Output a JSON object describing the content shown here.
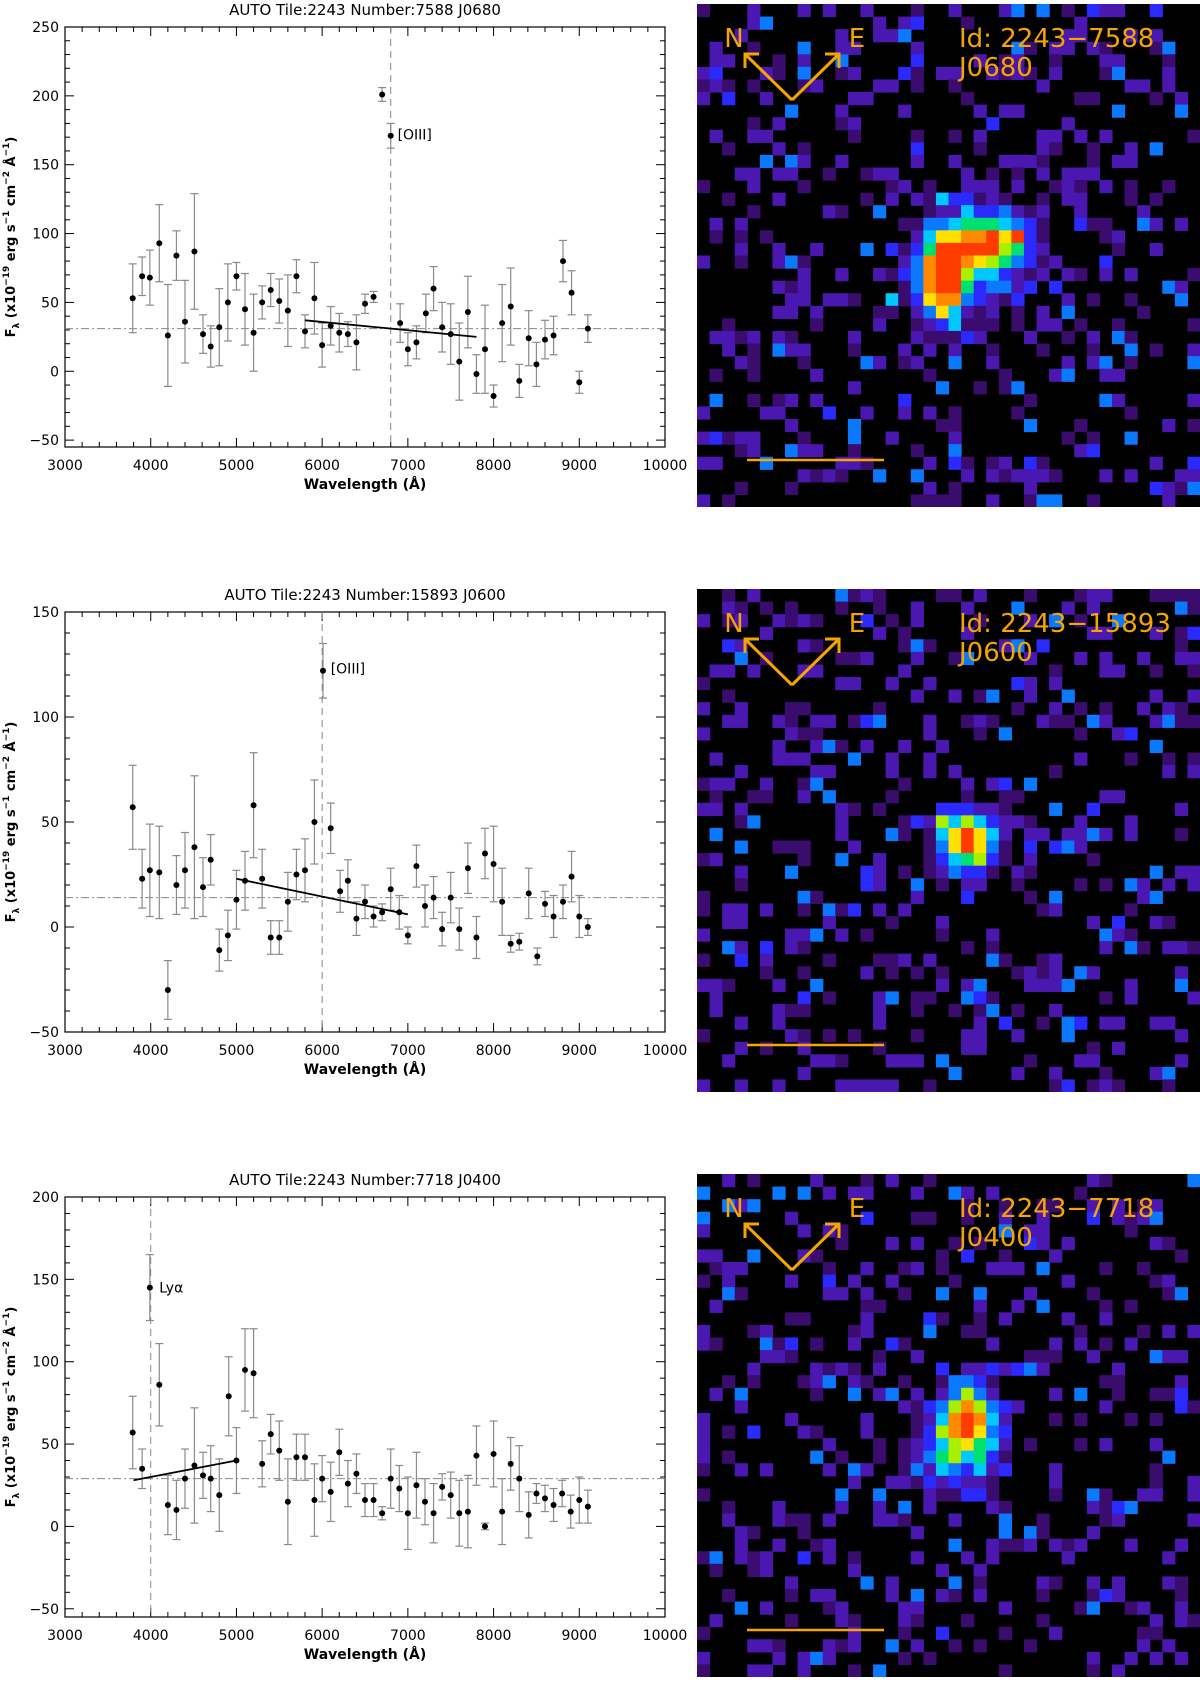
{
  "chart_data": [
    {
      "type": "scatter",
      "title": "AUTO Tile:2243 Number:7588 J0680",
      "xlabel": "Wavelength (Å)",
      "ylabel_main": "F",
      "ylabel_sub": "λ",
      "ylabel_rest": " (x10",
      "ylabel_exp1": "−19",
      "ylabel_mid1": " erg s",
      "ylabel_exp2": "−1",
      "ylabel_mid2": " cm",
      "ylabel_exp3": "−2",
      "ylabel_mid3": " Å",
      "ylabel_exp4": "−1",
      "ylabel_end": ")",
      "xlim": [
        3000,
        10000
      ],
      "ylim": [
        -55,
        250
      ],
      "xticks": [
        "3000",
        "4000",
        "5000",
        "6000",
        "7000",
        "8000",
        "9000",
        "10000"
      ],
      "xtick_values": [
        3000,
        4000,
        5000,
        6000,
        7000,
        8000,
        9000,
        10000
      ],
      "yticks": [
        "−50",
        "0",
        "50",
        "100",
        "150",
        "200",
        "250"
      ],
      "ytick_values": [
        -50,
        0,
        50,
        100,
        150,
        200,
        250
      ],
      "reference_level": 31,
      "line_marker_x": 6800,
      "line_label": "[OIII]",
      "line_label_at": [
        6880,
        172
      ],
      "continuum_fit": [
        [
          5800,
          37
        ],
        [
          7800,
          25
        ]
      ],
      "points": [
        {
          "x": 3790,
          "y": 53,
          "err": 25
        },
        {
          "x": 3900,
          "y": 69,
          "err": 14
        },
        {
          "x": 3990,
          "y": 68,
          "err": 20
        },
        {
          "x": 4100,
          "y": 93,
          "err": 28
        },
        {
          "x": 4200,
          "y": 26,
          "err": 37
        },
        {
          "x": 4300,
          "y": 84,
          "err": 18
        },
        {
          "x": 4400,
          "y": 36,
          "err": 30
        },
        {
          "x": 4510,
          "y": 87,
          "err": 42
        },
        {
          "x": 4610,
          "y": 27,
          "err": 14
        },
        {
          "x": 4700,
          "y": 18,
          "err": 15
        },
        {
          "x": 4800,
          "y": 32,
          "err": 28
        },
        {
          "x": 4900,
          "y": 50,
          "err": 28
        },
        {
          "x": 5000,
          "y": 69,
          "err": 10
        },
        {
          "x": 5100,
          "y": 45,
          "err": 26
        },
        {
          "x": 5200,
          "y": 28,
          "err": 28
        },
        {
          "x": 5300,
          "y": 50,
          "err": 12
        },
        {
          "x": 5400,
          "y": 59,
          "err": 12
        },
        {
          "x": 5500,
          "y": 51,
          "err": 16
        },
        {
          "x": 5600,
          "y": 44,
          "err": 26
        },
        {
          "x": 5700,
          "y": 69,
          "err": 12
        },
        {
          "x": 5800,
          "y": 29,
          "err": 12
        },
        {
          "x": 5910,
          "y": 53,
          "err": 26
        },
        {
          "x": 6000,
          "y": 19,
          "err": 16
        },
        {
          "x": 6100,
          "y": 33,
          "err": 14
        },
        {
          "x": 6200,
          "y": 28,
          "err": 14
        },
        {
          "x": 6300,
          "y": 27,
          "err": 9
        },
        {
          "x": 6400,
          "y": 21,
          "err": 20
        },
        {
          "x": 6500,
          "y": 49,
          "err": 7
        },
        {
          "x": 6600,
          "y": 54,
          "err": 4
        },
        {
          "x": 6700,
          "y": 201,
          "err": 5
        },
        {
          "x": 6800,
          "y": 171,
          "err": 9
        },
        {
          "x": 6910,
          "y": 35,
          "err": 14
        },
        {
          "x": 7000,
          "y": 16,
          "err": 12
        },
        {
          "x": 7100,
          "y": 21,
          "err": 12
        },
        {
          "x": 7210,
          "y": 42,
          "err": 14
        },
        {
          "x": 7300,
          "y": 60,
          "err": 16
        },
        {
          "x": 7400,
          "y": 32,
          "err": 18
        },
        {
          "x": 7500,
          "y": 27,
          "err": 22
        },
        {
          "x": 7600,
          "y": 7,
          "err": 28
        },
        {
          "x": 7700,
          "y": 43,
          "err": 26
        },
        {
          "x": 7800,
          "y": -2,
          "err": 14
        },
        {
          "x": 7900,
          "y": 16,
          "err": 32
        },
        {
          "x": 8000,
          "y": -18,
          "err": 8
        },
        {
          "x": 8100,
          "y": 35,
          "err": 28
        },
        {
          "x": 8200,
          "y": 47,
          "err": 28
        },
        {
          "x": 8300,
          "y": -7,
          "err": 12
        },
        {
          "x": 8410,
          "y": 24,
          "err": 20
        },
        {
          "x": 8500,
          "y": 5,
          "err": 16
        },
        {
          "x": 8600,
          "y": 23,
          "err": 14
        },
        {
          "x": 8700,
          "y": 26,
          "err": 14
        },
        {
          "x": 8810,
          "y": 80,
          "err": 15
        },
        {
          "x": 8910,
          "y": 57,
          "err": 16
        },
        {
          "x": 9000,
          "y": -8,
          "err": 8
        },
        {
          "x": 9100,
          "y": 31,
          "err": 10
        }
      ]
    },
    {
      "type": "scatter",
      "title": "AUTO Tile:2243 Number:15893 J0600",
      "xlabel": "Wavelength (Å)",
      "ylabel_main": "F",
      "ylabel_sub": "λ",
      "ylabel_rest": " (x10",
      "ylabel_exp1": "−19",
      "ylabel_mid1": " erg s",
      "ylabel_exp2": "−1",
      "ylabel_mid2": " cm",
      "ylabel_exp3": "−2",
      "ylabel_mid3": " Å",
      "ylabel_exp4": "−1",
      "ylabel_end": ")",
      "xlim": [
        3000,
        10000
      ],
      "ylim": [
        -50,
        150
      ],
      "xticks": [
        "3000",
        "4000",
        "5000",
        "6000",
        "7000",
        "8000",
        "9000",
        "10000"
      ],
      "xtick_values": [
        3000,
        4000,
        5000,
        6000,
        7000,
        8000,
        9000,
        10000
      ],
      "yticks": [
        "−50",
        "0",
        "50",
        "100",
        "150"
      ],
      "ytick_values": [
        -50,
        0,
        50,
        100,
        150
      ],
      "reference_level": 14,
      "line_marker_x": 6000,
      "line_label": "[OIII]",
      "line_label_at": [
        6100,
        123
      ],
      "continuum_fit": [
        [
          5000,
          23
        ],
        [
          7000,
          6
        ]
      ],
      "points": [
        {
          "x": 3790,
          "y": 57,
          "err": 20
        },
        {
          "x": 3900,
          "y": 23,
          "err": 14
        },
        {
          "x": 3990,
          "y": 27,
          "err": 22
        },
        {
          "x": 4100,
          "y": 26,
          "err": 22
        },
        {
          "x": 4200,
          "y": -30,
          "err": 14
        },
        {
          "x": 4300,
          "y": 20,
          "err": 14
        },
        {
          "x": 4400,
          "y": 27,
          "err": 18
        },
        {
          "x": 4510,
          "y": 38,
          "err": 34
        },
        {
          "x": 4610,
          "y": 19,
          "err": 14
        },
        {
          "x": 4700,
          "y": 32,
          "err": 12
        },
        {
          "x": 4800,
          "y": -11,
          "err": 10
        },
        {
          "x": 4900,
          "y": -4,
          "err": 12
        },
        {
          "x": 5000,
          "y": 13,
          "err": 14
        },
        {
          "x": 5100,
          "y": 22,
          "err": 14
        },
        {
          "x": 5200,
          "y": 58,
          "err": 25
        },
        {
          "x": 5300,
          "y": 23,
          "err": 14
        },
        {
          "x": 5400,
          "y": -5,
          "err": 8
        },
        {
          "x": 5500,
          "y": -5,
          "err": 8
        },
        {
          "x": 5600,
          "y": 12,
          "err": 14
        },
        {
          "x": 5700,
          "y": 25,
          "err": 12
        },
        {
          "x": 5800,
          "y": 27,
          "err": 15
        },
        {
          "x": 5910,
          "y": 50,
          "err": 20
        },
        {
          "x": 6010,
          "y": 122,
          "err": 13
        },
        {
          "x": 6100,
          "y": 47,
          "err": 12
        },
        {
          "x": 6210,
          "y": 17,
          "err": 10
        },
        {
          "x": 6300,
          "y": 22,
          "err": 10
        },
        {
          "x": 6400,
          "y": 4,
          "err": 8
        },
        {
          "x": 6500,
          "y": 12,
          "err": 8
        },
        {
          "x": 6600,
          "y": 5,
          "err": 5
        },
        {
          "x": 6700,
          "y": 7,
          "err": 4
        },
        {
          "x": 6800,
          "y": 18,
          "err": 10
        },
        {
          "x": 6900,
          "y": 7,
          "err": 8
        },
        {
          "x": 7000,
          "y": -4,
          "err": 4
        },
        {
          "x": 7100,
          "y": 29,
          "err": 10
        },
        {
          "x": 7200,
          "y": 10,
          "err": 10
        },
        {
          "x": 7300,
          "y": 14,
          "err": 10
        },
        {
          "x": 7400,
          "y": -1,
          "err": 8
        },
        {
          "x": 7500,
          "y": 14,
          "err": 12
        },
        {
          "x": 7600,
          "y": -1,
          "err": 10
        },
        {
          "x": 7700,
          "y": 28,
          "err": 12
        },
        {
          "x": 7800,
          "y": -5,
          "err": 10
        },
        {
          "x": 7900,
          "y": 35,
          "err": 12
        },
        {
          "x": 8000,
          "y": 30,
          "err": 18
        },
        {
          "x": 8100,
          "y": 12,
          "err": 16
        },
        {
          "x": 8200,
          "y": -8,
          "err": 4
        },
        {
          "x": 8300,
          "y": -7,
          "err": 4
        },
        {
          "x": 8410,
          "y": 16,
          "err": 12
        },
        {
          "x": 8510,
          "y": -14,
          "err": 4
        },
        {
          "x": 8600,
          "y": 11,
          "err": 6
        },
        {
          "x": 8700,
          "y": 5,
          "err": 10
        },
        {
          "x": 8810,
          "y": 12,
          "err": 8
        },
        {
          "x": 8910,
          "y": 24,
          "err": 12
        },
        {
          "x": 9000,
          "y": 5,
          "err": 10
        },
        {
          "x": 9100,
          "y": 0,
          "err": 4
        }
      ]
    },
    {
      "type": "scatter",
      "title": "AUTO Tile:2243 Number:7718 J0400",
      "xlabel": "Wavelength (Å)",
      "ylabel_main": "F",
      "ylabel_sub": "λ",
      "ylabel_rest": " (x10",
      "ylabel_exp1": "−19",
      "ylabel_mid1": " erg s",
      "ylabel_exp2": "−1",
      "ylabel_mid2": " cm",
      "ylabel_exp3": "−2",
      "ylabel_mid3": " Å",
      "ylabel_exp4": "−1",
      "ylabel_end": ")",
      "xlim": [
        3000,
        10000
      ],
      "ylim": [
        -55,
        200
      ],
      "xticks": [
        "3000",
        "4000",
        "5000",
        "6000",
        "7000",
        "8000",
        "9000",
        "10000"
      ],
      "xtick_values": [
        3000,
        4000,
        5000,
        6000,
        7000,
        8000,
        9000,
        10000
      ],
      "yticks": [
        "−50",
        "0",
        "50",
        "100",
        "150",
        "200"
      ],
      "ytick_values": [
        -50,
        0,
        50,
        100,
        150,
        200
      ],
      "reference_level": 29,
      "line_marker_x": 4000,
      "line_label": "Lyα",
      "line_label_at": [
        4100,
        145
      ],
      "continuum_fit": [
        [
          3800,
          28
        ],
        [
          5000,
          40
        ]
      ],
      "points": [
        {
          "x": 3790,
          "y": 57,
          "err": 22
        },
        {
          "x": 3900,
          "y": 35,
          "err": 12
        },
        {
          "x": 3990,
          "y": 145,
          "err": 20
        },
        {
          "x": 4100,
          "y": 86,
          "err": 25
        },
        {
          "x": 4200,
          "y": 13,
          "err": 18
        },
        {
          "x": 4300,
          "y": 10,
          "err": 18
        },
        {
          "x": 4400,
          "y": 29,
          "err": 18
        },
        {
          "x": 4510,
          "y": 37,
          "err": 35
        },
        {
          "x": 4610,
          "y": 31,
          "err": 14
        },
        {
          "x": 4700,
          "y": 29,
          "err": 20
        },
        {
          "x": 4800,
          "y": 19,
          "err": 22
        },
        {
          "x": 4910,
          "y": 79,
          "err": 24
        },
        {
          "x": 5000,
          "y": 40,
          "err": 20
        },
        {
          "x": 5100,
          "y": 95,
          "err": 25
        },
        {
          "x": 5200,
          "y": 93,
          "err": 27
        },
        {
          "x": 5300,
          "y": 38,
          "err": 14
        },
        {
          "x": 5400,
          "y": 56,
          "err": 12
        },
        {
          "x": 5500,
          "y": 46,
          "err": 18
        },
        {
          "x": 5600,
          "y": 15,
          "err": 26
        },
        {
          "x": 5700,
          "y": 42,
          "err": 14
        },
        {
          "x": 5800,
          "y": 42,
          "err": 14
        },
        {
          "x": 5910,
          "y": 16,
          "err": 22
        },
        {
          "x": 6000,
          "y": 29,
          "err": 14
        },
        {
          "x": 6100,
          "y": 21,
          "err": 18
        },
        {
          "x": 6200,
          "y": 45,
          "err": 14
        },
        {
          "x": 6300,
          "y": 26,
          "err": 14
        },
        {
          "x": 6400,
          "y": 32,
          "err": 12
        },
        {
          "x": 6500,
          "y": 16,
          "err": 10
        },
        {
          "x": 6600,
          "y": 16,
          "err": 10
        },
        {
          "x": 6700,
          "y": 8,
          "err": 4
        },
        {
          "x": 6800,
          "y": 29,
          "err": 18
        },
        {
          "x": 6900,
          "y": 23,
          "err": 14
        },
        {
          "x": 7000,
          "y": 8,
          "err": 22
        },
        {
          "x": 7100,
          "y": 25,
          "err": 20
        },
        {
          "x": 7200,
          "y": 15,
          "err": 14
        },
        {
          "x": 7300,
          "y": 8,
          "err": 18
        },
        {
          "x": 7400,
          "y": 24,
          "err": 8
        },
        {
          "x": 7500,
          "y": 19,
          "err": 14
        },
        {
          "x": 7600,
          "y": 8,
          "err": 20
        },
        {
          "x": 7700,
          "y": 9,
          "err": 22
        },
        {
          "x": 7800,
          "y": 43,
          "err": 18
        },
        {
          "x": 7900,
          "y": 0,
          "err": 2
        },
        {
          "x": 8000,
          "y": 44,
          "err": 20
        },
        {
          "x": 8100,
          "y": 9,
          "err": 20
        },
        {
          "x": 8200,
          "y": 38,
          "err": 16
        },
        {
          "x": 8300,
          "y": 29,
          "err": 20
        },
        {
          "x": 8410,
          "y": 7,
          "err": 14
        },
        {
          "x": 8500,
          "y": 20,
          "err": 6
        },
        {
          "x": 8600,
          "y": 17,
          "err": 8
        },
        {
          "x": 8700,
          "y": 13,
          "err": 10
        },
        {
          "x": 8800,
          "y": 20,
          "err": 8
        },
        {
          "x": 8900,
          "y": 9,
          "err": 10
        },
        {
          "x": 9000,
          "y": 16,
          "err": 14
        },
        {
          "x": 9100,
          "y": 12,
          "err": 10
        }
      ]
    }
  ],
  "stamps": [
    {
      "n_label": "N",
      "e_label": "E",
      "id_text": "Id: 2243−7588",
      "filter_text": "J0680",
      "annotation_color": "#f5a400",
      "background_color": "#000000",
      "blob_peak_color": "#ff3b00"
    },
    {
      "n_label": "N",
      "e_label": "E",
      "id_text": "Id: 2243−15893",
      "filter_text": "J0600",
      "annotation_color": "#f5a400",
      "background_color": "#000000",
      "blob_peak_color": "#ff3b00"
    },
    {
      "n_label": "N",
      "e_label": "E",
      "id_text": "Id: 2243−7718",
      "filter_text": "J0400",
      "annotation_color": "#f5a400",
      "background_color": "#000000",
      "blob_peak_color": "#ff3b00"
    }
  ]
}
